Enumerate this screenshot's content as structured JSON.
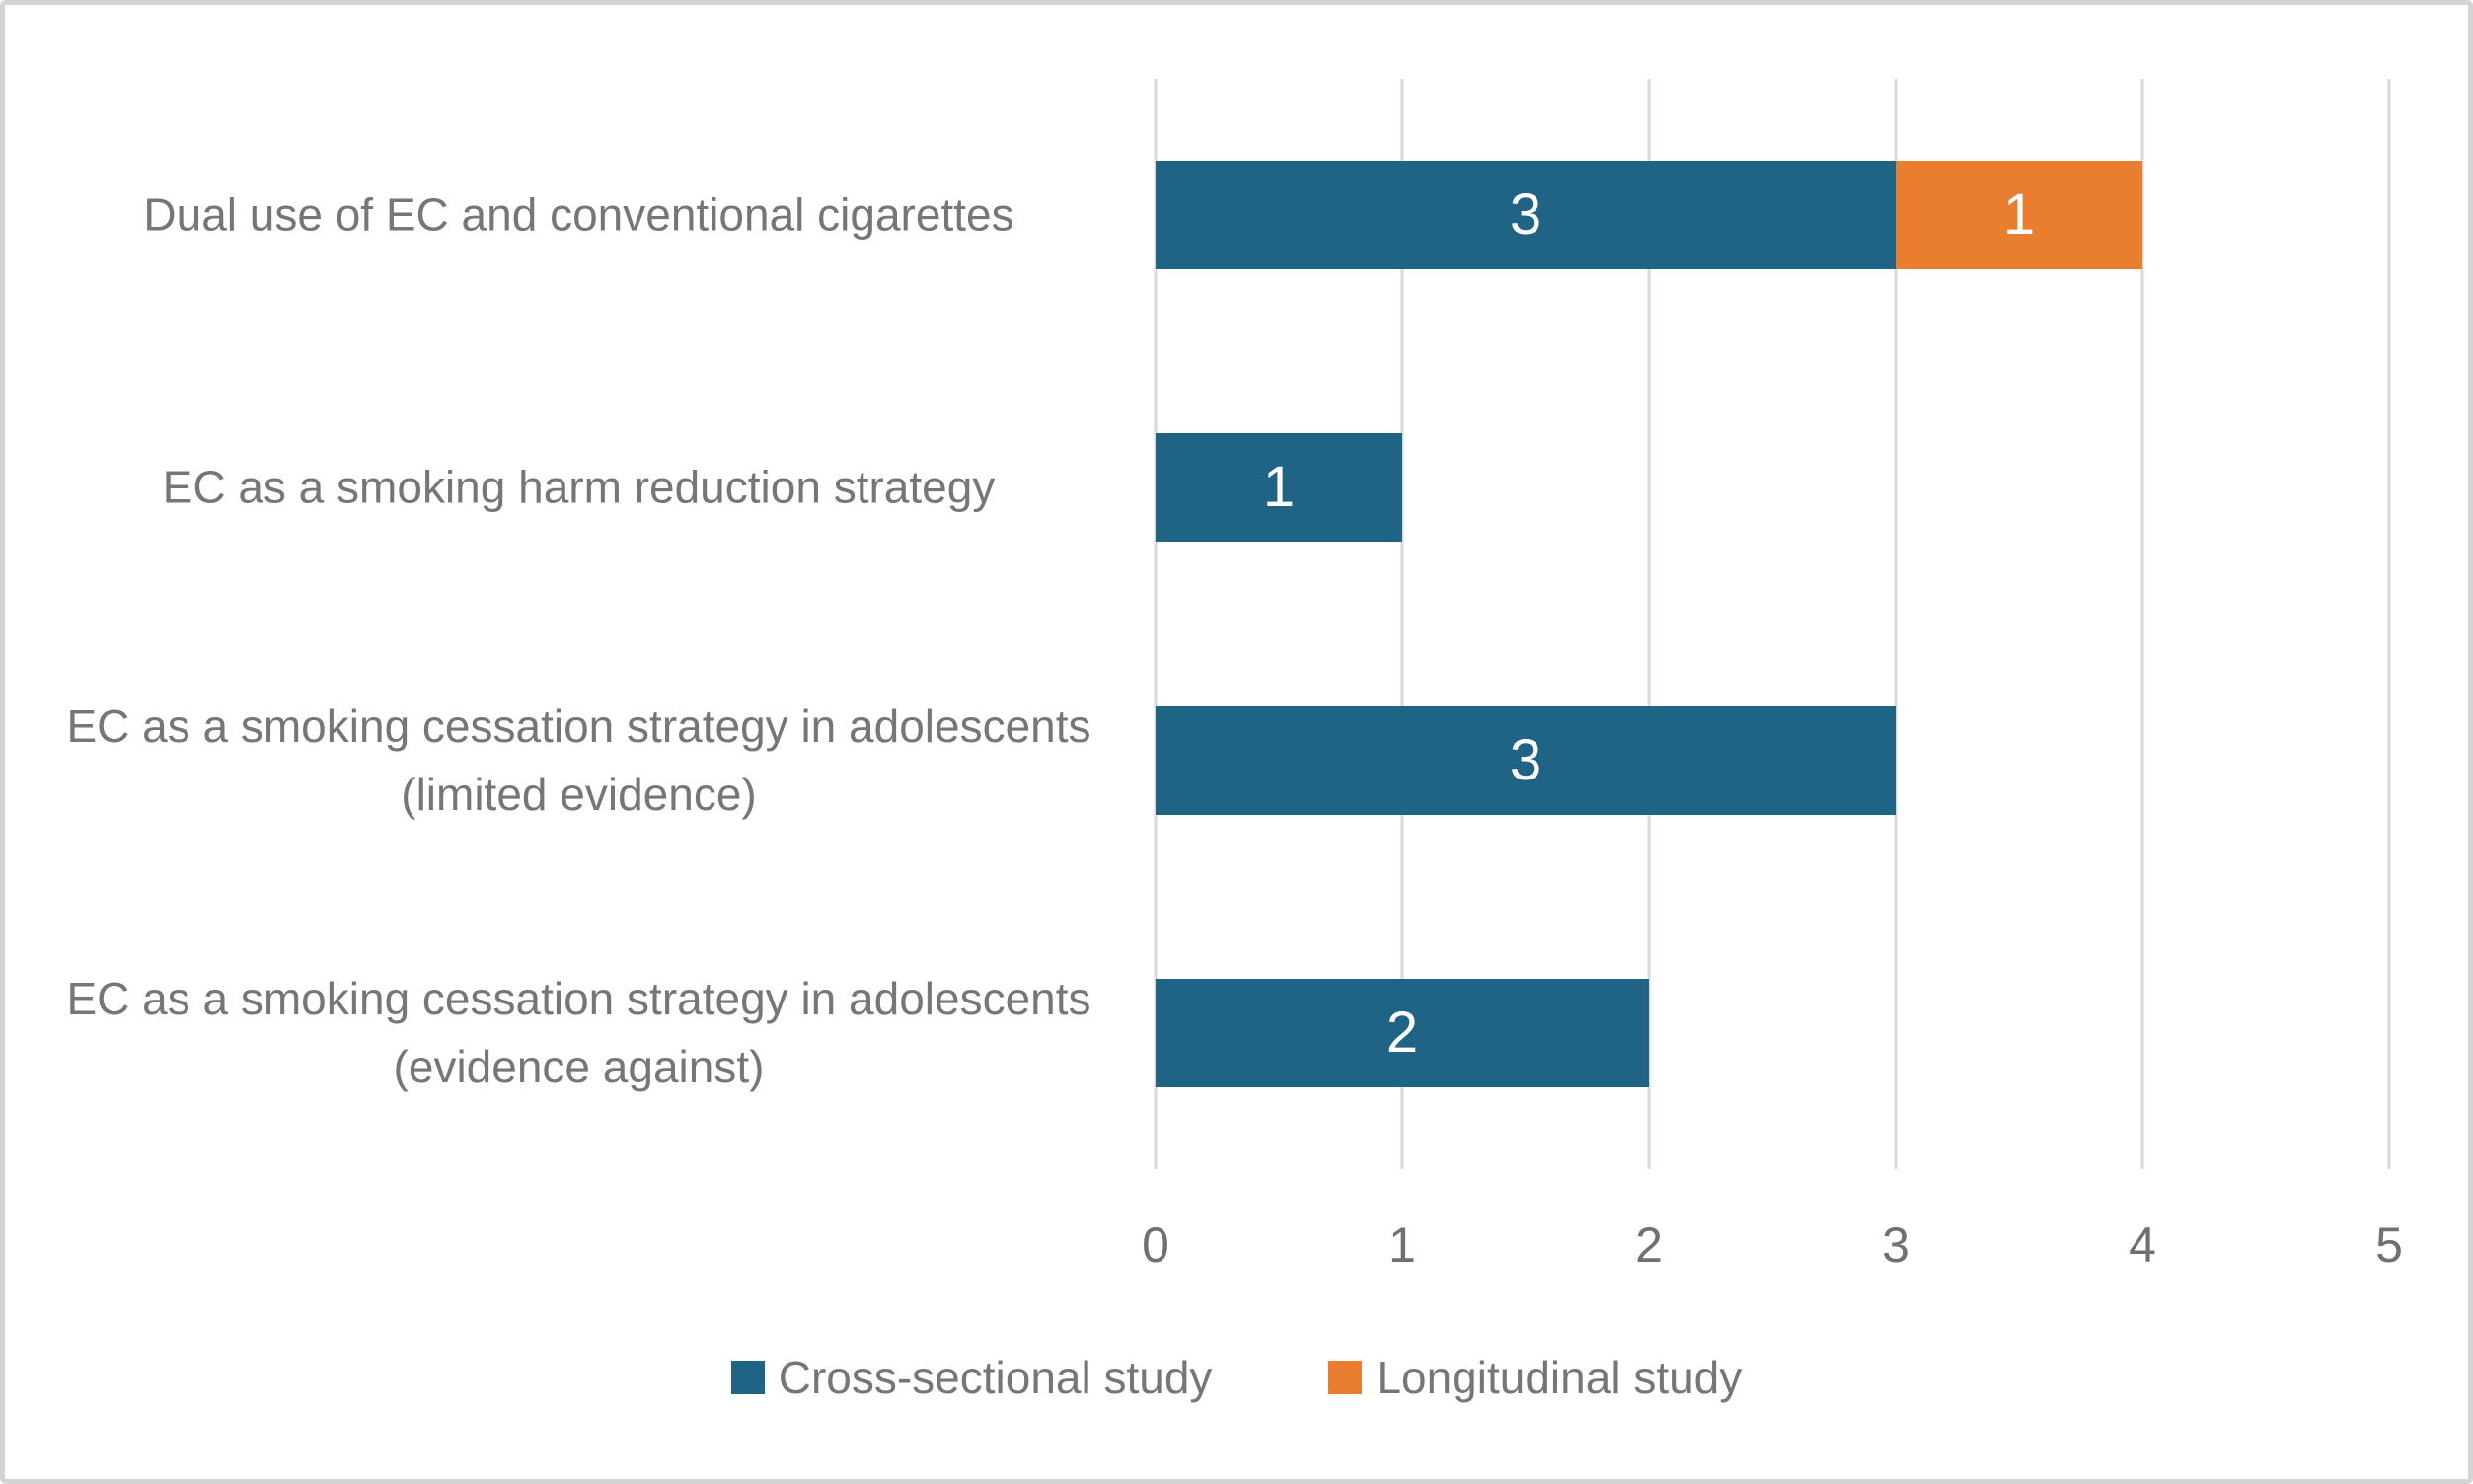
{
  "chart_data": {
    "type": "bar",
    "orientation": "horizontal",
    "stacked": true,
    "title": "",
    "xlabel": "",
    "ylabel": "",
    "categories": [
      "Dual use of EC and conventional cigarettes",
      "EC as a smoking harm reduction strategy",
      "EC as a smoking cessation strategy in adolescents (limited evidence)",
      "EC as a smoking cessation strategy in adolescents (evidence against)"
    ],
    "series": [
      {
        "name": "Cross-sectional study",
        "color": "#1f6385",
        "values": [
          3,
          1,
          3,
          2
        ]
      },
      {
        "name": "Longitudinal study",
        "color": "#e97e31",
        "values": [
          1,
          0,
          0,
          0
        ]
      }
    ],
    "xlim": [
      0,
      5
    ],
    "x_ticks": [
      "0",
      "1",
      "2",
      "3",
      "4",
      "5"
    ],
    "grid": "vertical-gridlines-on",
    "gridline_color": "#d9d9d9",
    "data_labels": "white, centered inside segments",
    "legend_position": "bottom-center",
    "text_color": "#767676",
    "background_color": "#ffffff"
  }
}
